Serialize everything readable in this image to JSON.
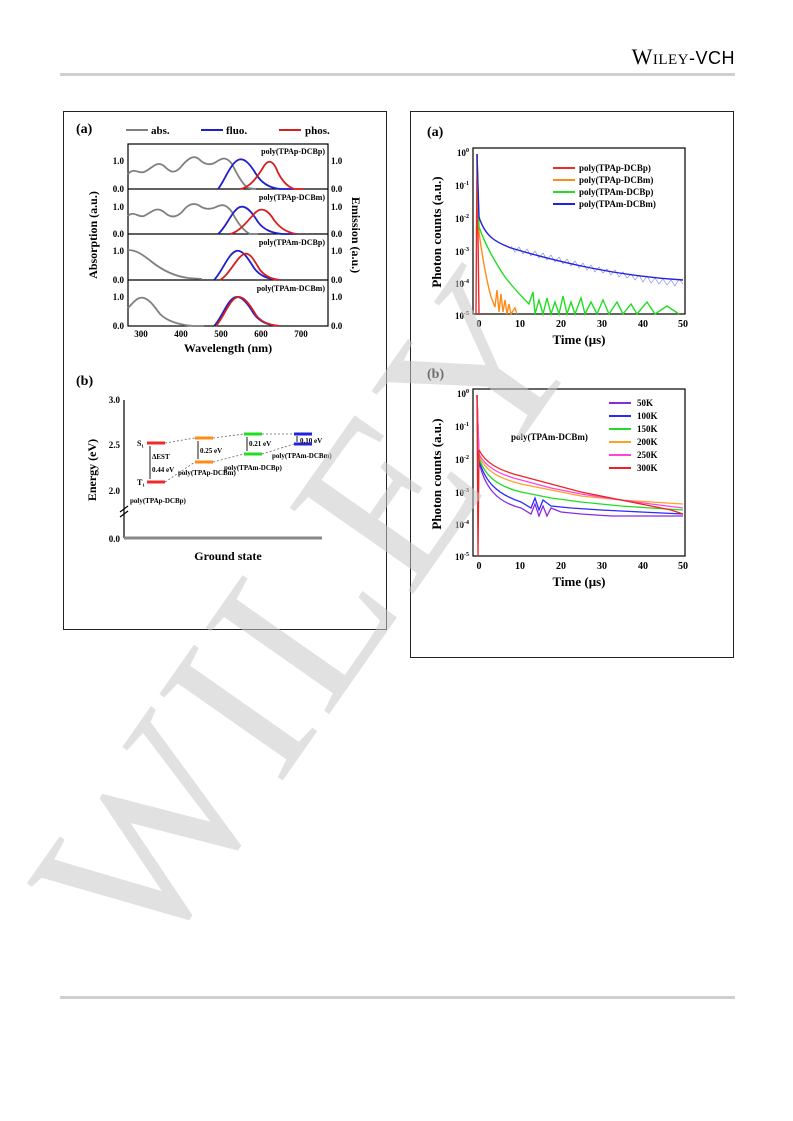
{
  "header": {
    "brand_wiley": "Wiley",
    "brand_vch": "-VCH"
  },
  "watermark": {
    "text": "WILEY"
  },
  "left_figure": {
    "panel_a": {
      "label": "(a)",
      "legend": [
        "abs.",
        "fluo.",
        "phos."
      ],
      "ylabel_left": "Absorption (a.u.)",
      "ylabel_right": "Emission (a.u.)",
      "xlabel": "Wavelength (nm)",
      "xticks": [
        "300",
        "400",
        "500",
        "600",
        "700"
      ],
      "yticks": [
        "0.0",
        "1.0"
      ],
      "subplots": [
        "poly(TPAp-DCBp)",
        "poly(TPAp-DCBm)",
        "poly(TPAm-DCBp)",
        "poly(TPAm-DCBm)"
      ]
    },
    "panel_b": {
      "label": "(b)",
      "ylabel": "Energy (eV)",
      "xlabel": "Ground state",
      "yticks": [
        "3.0",
        "2.5",
        "2.0",
        "0.0"
      ],
      "s1": "S₁",
      "t1": "T₁",
      "delta_est": "ΔEST",
      "gaps": [
        "0.44 eV",
        "0.25 eV",
        "0.21 eV",
        "0.10 eV"
      ],
      "polymers": [
        "poly(TPAp-DCBp)",
        "poly(TPAp-DCBm)",
        "poly(TPAm-DCBp)",
        "poly(TPAm-DCBm)"
      ]
    }
  },
  "right_figure": {
    "panel_a": {
      "label": "(a)",
      "ylabel": "Photon counts (a.u.)",
      "xlabel": "Time (μs)",
      "xticks": [
        "0",
        "10",
        "20",
        "30",
        "40",
        "50"
      ],
      "legend": [
        "poly(TPAp-DCBp)",
        "poly(TPAp-DCBm)",
        "poly(TPAm-DCBp)",
        "poly(TPAm-DCBm)"
      ]
    },
    "panel_b": {
      "label": "(b)",
      "ylabel": "Photon counts (a.u.)",
      "xlabel": "Time (μs)",
      "xticks": [
        "0",
        "10",
        "20",
        "30",
        "40",
        "50"
      ],
      "sample": "poly(TPAm-DCBm)",
      "legend": [
        "50K",
        "100K",
        "150K",
        "200K",
        "250K",
        "300K"
      ]
    }
  },
  "colors": {
    "abs": "#808080",
    "fluo": "#1f1fcc",
    "phos": "#d42020",
    "red": "#ee2b2b",
    "orange": "#ff8c1a",
    "green": "#22dd22",
    "blue": "#2222dd",
    "k50": "#8a2be2",
    "k100": "#2b2bff",
    "k150": "#22dd22",
    "k200": "#ffa028",
    "k250": "#ff44dd",
    "k300": "#ee2222"
  }
}
